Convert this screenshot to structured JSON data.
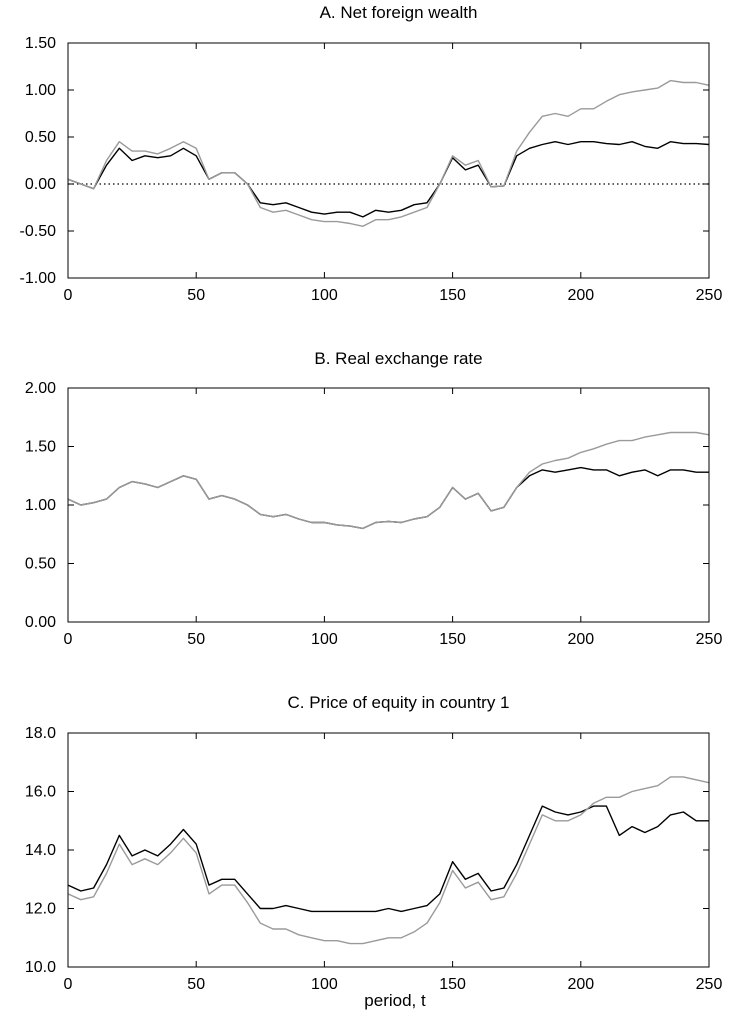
{
  "x_axis_label": "period, t",
  "chart_data": [
    {
      "type": "line",
      "title": "A. Net foreign wealth",
      "xlabel": "",
      "ylabel": "",
      "xlim": [
        0,
        250
      ],
      "ylim": [
        -1.0,
        1.5
      ],
      "x_ticks": [
        "0",
        "50",
        "100",
        "150",
        "200",
        "250"
      ],
      "y_ticks": [
        "1.50",
        "1.00",
        "0.50",
        "0.00",
        "-0.50",
        "-1.00"
      ],
      "zero_line": true,
      "x": [
        0,
        5,
        10,
        15,
        20,
        25,
        30,
        35,
        40,
        45,
        50,
        55,
        60,
        65,
        70,
        75,
        80,
        85,
        90,
        95,
        100,
        105,
        110,
        115,
        120,
        125,
        130,
        135,
        140,
        145,
        150,
        155,
        160,
        165,
        170,
        175,
        180,
        185,
        190,
        195,
        200,
        205,
        210,
        215,
        220,
        225,
        230,
        235,
        240,
        245,
        250
      ],
      "series": [
        {
          "color": "#000000",
          "values": [
            0.05,
            0.0,
            -0.05,
            0.2,
            0.38,
            0.25,
            0.3,
            0.28,
            0.3,
            0.38,
            0.3,
            0.05,
            0.12,
            0.12,
            0.0,
            -0.2,
            -0.22,
            -0.2,
            -0.25,
            -0.3,
            -0.32,
            -0.3,
            -0.3,
            -0.35,
            -0.28,
            -0.3,
            -0.28,
            -0.22,
            -0.2,
            0.0,
            0.28,
            0.15,
            0.2,
            -0.03,
            -0.02,
            0.3,
            0.38,
            0.42,
            0.45,
            0.42,
            0.45,
            0.45,
            0.43,
            0.42,
            0.45,
            0.4,
            0.38,
            0.45,
            0.43,
            0.43,
            0.42
          ]
        },
        {
          "color": "#9a9a9a",
          "values": [
            0.05,
            0.0,
            -0.05,
            0.25,
            0.45,
            0.35,
            0.35,
            0.32,
            0.38,
            0.45,
            0.38,
            0.05,
            0.12,
            0.12,
            0.0,
            -0.25,
            -0.3,
            -0.28,
            -0.33,
            -0.38,
            -0.4,
            -0.4,
            -0.42,
            -0.45,
            -0.38,
            -0.38,
            -0.35,
            -0.3,
            -0.25,
            0.0,
            0.3,
            0.2,
            0.25,
            -0.03,
            -0.02,
            0.35,
            0.55,
            0.72,
            0.75,
            0.72,
            0.8,
            0.8,
            0.88,
            0.95,
            0.98,
            1.0,
            1.02,
            1.1,
            1.08,
            1.08,
            1.05
          ]
        }
      ]
    },
    {
      "type": "line",
      "title": "B. Real exchange rate",
      "xlabel": "",
      "ylabel": "",
      "xlim": [
        0,
        250
      ],
      "ylim": [
        0.0,
        2.0
      ],
      "x_ticks": [
        "0",
        "50",
        "100",
        "150",
        "200",
        "250"
      ],
      "y_ticks": [
        "2.00",
        "1.50",
        "1.00",
        "0.50",
        "0.00"
      ],
      "zero_line": false,
      "x": [
        0,
        5,
        10,
        15,
        20,
        25,
        30,
        35,
        40,
        45,
        50,
        55,
        60,
        65,
        70,
        75,
        80,
        85,
        90,
        95,
        100,
        105,
        110,
        115,
        120,
        125,
        130,
        135,
        140,
        145,
        150,
        155,
        160,
        165,
        170,
        175,
        180,
        185,
        190,
        195,
        200,
        205,
        210,
        215,
        220,
        225,
        230,
        235,
        240,
        245,
        250
      ],
      "series": [
        {
          "color": "#000000",
          "values": [
            1.05,
            1.0,
            1.02,
            1.05,
            1.15,
            1.2,
            1.18,
            1.15,
            1.2,
            1.25,
            1.22,
            1.05,
            1.08,
            1.05,
            1.0,
            0.92,
            0.9,
            0.92,
            0.88,
            0.85,
            0.85,
            0.83,
            0.82,
            0.8,
            0.85,
            0.86,
            0.85,
            0.88,
            0.9,
            0.98,
            1.15,
            1.05,
            1.1,
            0.95,
            0.98,
            1.15,
            1.25,
            1.3,
            1.28,
            1.3,
            1.32,
            1.3,
            1.3,
            1.25,
            1.28,
            1.3,
            1.25,
            1.3,
            1.3,
            1.28,
            1.28
          ]
        },
        {
          "color": "#9a9a9a",
          "values": [
            1.05,
            1.0,
            1.02,
            1.05,
            1.15,
            1.2,
            1.18,
            1.15,
            1.2,
            1.25,
            1.22,
            1.05,
            1.08,
            1.05,
            1.0,
            0.92,
            0.9,
            0.92,
            0.88,
            0.85,
            0.85,
            0.83,
            0.82,
            0.8,
            0.85,
            0.86,
            0.85,
            0.88,
            0.9,
            0.98,
            1.15,
            1.05,
            1.1,
            0.95,
            0.98,
            1.15,
            1.28,
            1.35,
            1.38,
            1.4,
            1.45,
            1.48,
            1.52,
            1.55,
            1.55,
            1.58,
            1.6,
            1.62,
            1.62,
            1.62,
            1.6
          ]
        }
      ]
    },
    {
      "type": "line",
      "title": "C. Price of equity in country 1",
      "xlabel": "period, t",
      "ylabel": "",
      "xlim": [
        0,
        250
      ],
      "ylim": [
        10.0,
        18.0
      ],
      "x_ticks": [
        "0",
        "50",
        "100",
        "150",
        "200",
        "250"
      ],
      "y_ticks": [
        "18.0",
        "16.0",
        "14.0",
        "12.0",
        "10.0"
      ],
      "zero_line": false,
      "x": [
        0,
        5,
        10,
        15,
        20,
        25,
        30,
        35,
        40,
        45,
        50,
        55,
        60,
        65,
        70,
        75,
        80,
        85,
        90,
        95,
        100,
        105,
        110,
        115,
        120,
        125,
        130,
        135,
        140,
        145,
        150,
        155,
        160,
        165,
        170,
        175,
        180,
        185,
        190,
        195,
        200,
        205,
        210,
        215,
        220,
        225,
        230,
        235,
        240,
        245,
        250
      ],
      "series": [
        {
          "color": "#000000",
          "values": [
            12.8,
            12.6,
            12.7,
            13.5,
            14.5,
            13.8,
            14.0,
            13.8,
            14.2,
            14.7,
            14.2,
            12.8,
            13.0,
            13.0,
            12.5,
            12.0,
            12.0,
            12.1,
            12.0,
            11.9,
            11.9,
            11.9,
            11.9,
            11.9,
            11.9,
            12.0,
            11.9,
            12.0,
            12.1,
            12.5,
            13.6,
            13.0,
            13.2,
            12.6,
            12.7,
            13.5,
            14.5,
            15.5,
            15.3,
            15.2,
            15.3,
            15.5,
            15.5,
            14.5,
            14.8,
            14.6,
            14.8,
            15.2,
            15.3,
            15.0,
            15.0
          ]
        },
        {
          "color": "#9a9a9a",
          "values": [
            12.5,
            12.3,
            12.4,
            13.2,
            14.2,
            13.5,
            13.7,
            13.5,
            13.9,
            14.4,
            13.9,
            12.5,
            12.8,
            12.8,
            12.2,
            11.5,
            11.3,
            11.3,
            11.1,
            11.0,
            10.9,
            10.9,
            10.8,
            10.8,
            10.9,
            11.0,
            11.0,
            11.2,
            11.5,
            12.2,
            13.3,
            12.7,
            12.9,
            12.3,
            12.4,
            13.2,
            14.2,
            15.2,
            15.0,
            15.0,
            15.2,
            15.6,
            15.8,
            15.8,
            16.0,
            16.1,
            16.2,
            16.5,
            16.5,
            16.4,
            16.3
          ]
        }
      ]
    }
  ]
}
